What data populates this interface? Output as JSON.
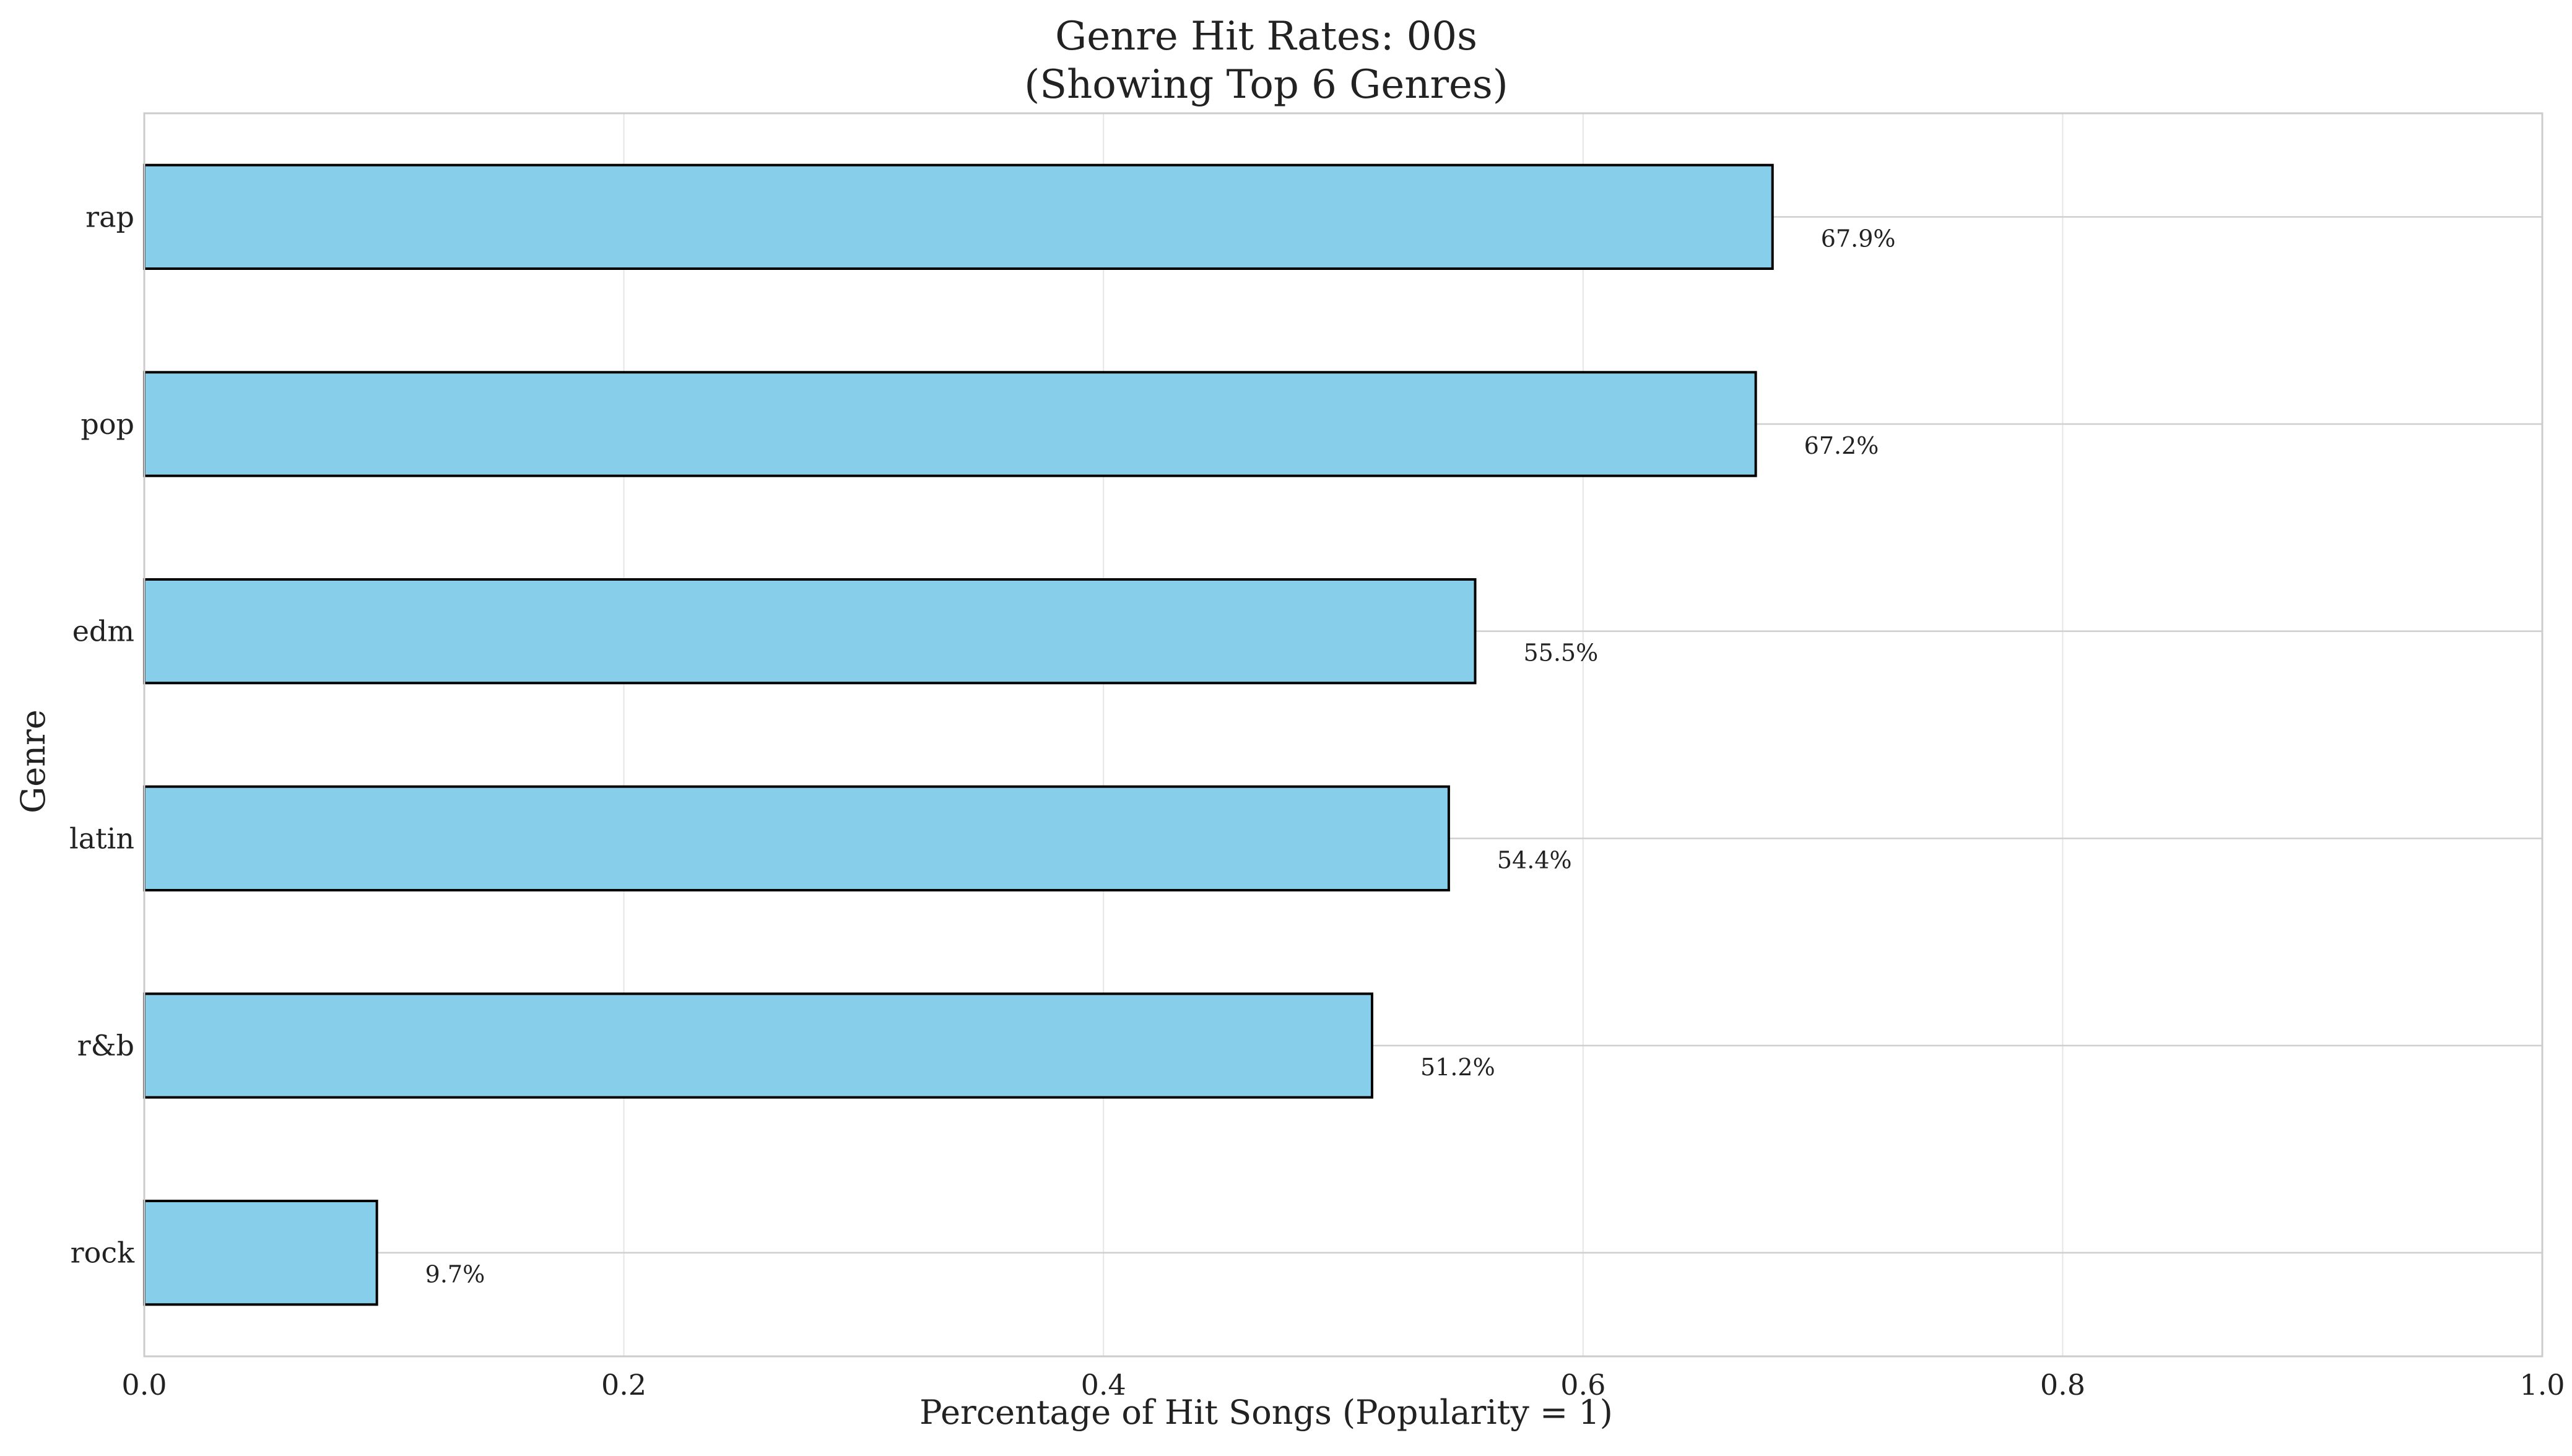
{
  "chart_data": {
    "type": "bar",
    "orientation": "horizontal",
    "title": "Genre Hit Rates: 00s",
    "subtitle": "(Showing Top 6 Genres)",
    "xlabel": "Percentage of Hit Songs (Popularity = 1)",
    "ylabel": "Genre",
    "xlim": [
      0,
      1
    ],
    "x_ticks": [
      "0.0",
      "0.2",
      "0.4",
      "0.6",
      "0.8",
      "1.0"
    ],
    "categories": [
      "rap",
      "pop",
      "edm",
      "latin",
      "r&b",
      "rock"
    ],
    "values": [
      0.679,
      0.672,
      0.555,
      0.544,
      0.512,
      0.097
    ],
    "value_labels": [
      "67.9%",
      "67.2%",
      "55.5%",
      "54.4%",
      "51.2%",
      "9.7%"
    ],
    "grid": true,
    "legend": "none",
    "colors": {
      "bar": "#87CEEB",
      "bar_edge": "#000000",
      "grid": "#e6e6e6",
      "frame": "#cccccc"
    }
  }
}
